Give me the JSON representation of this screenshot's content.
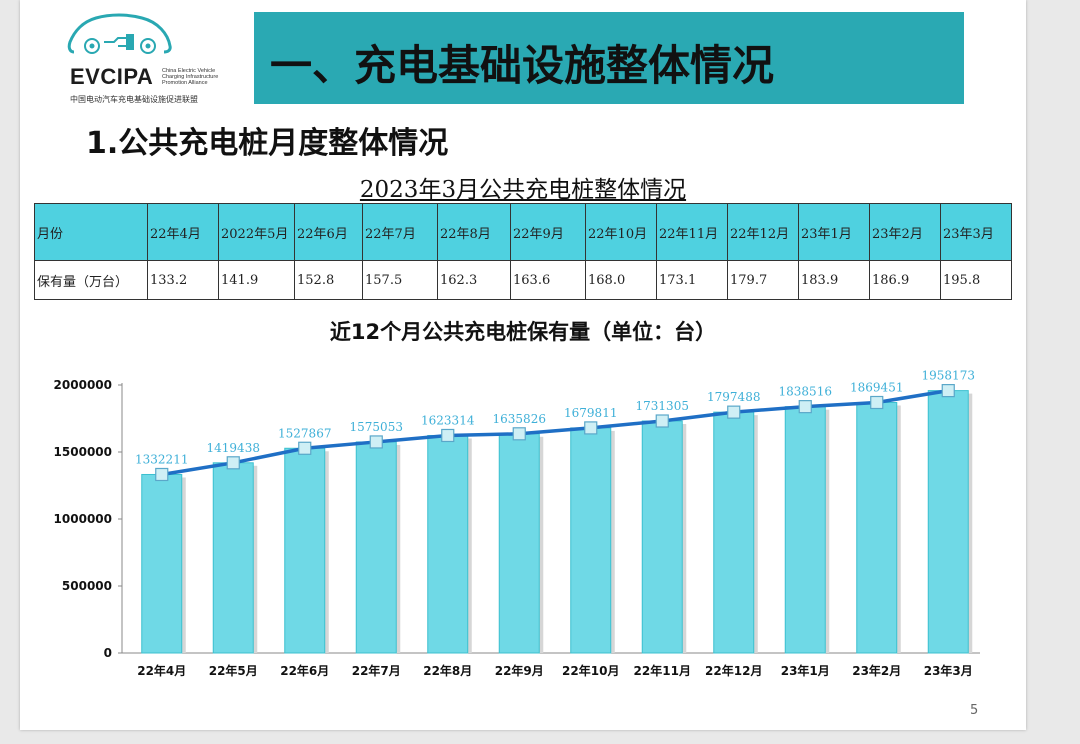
{
  "logo": {
    "name": "EVCIPA",
    "en_line1": "China Electric Vehicle",
    "en_line2": "Charging Infrastructure",
    "en_line3": "Promotion Alliance",
    "cn_name": "中国电动汽车充电基础设施促进联盟"
  },
  "header": {
    "title": "一、充电基础设施整体情况"
  },
  "section": {
    "subtitle": "1.公共充电桩月度整体情况"
  },
  "table": {
    "title": "2023年3月公共充电桩整体情况",
    "row_labels": [
      "月份",
      "保有量（万台）"
    ],
    "months": [
      "22年4月",
      "2022年5月",
      "22年6月",
      "22年7月",
      "22年8月",
      "22年9月",
      "22年10月",
      "22年11月",
      "22年12月",
      "23年1月",
      "23年2月",
      "23年3月"
    ],
    "values": [
      "133.2",
      "141.9",
      "152.8",
      "157.5",
      "162.3",
      "163.6",
      "168.0",
      "173.1",
      "179.7",
      "183.9",
      "186.9",
      "195.8"
    ]
  },
  "chart_data": {
    "type": "bar",
    "title": "近12个月公共充电桩保有量（单位：台）",
    "categories": [
      "22年4月",
      "22年5月",
      "22年6月",
      "22年7月",
      "22年8月",
      "22年9月",
      "22年10月",
      "22年11月",
      "22年12月",
      "23年1月",
      "23年2月",
      "23年3月"
    ],
    "values": [
      1332211,
      1419438,
      1527867,
      1575053,
      1623314,
      1635826,
      1679811,
      1731305,
      1797488,
      1838516,
      1869451,
      1958173
    ],
    "overlay_line": true,
    "ylim": [
      0,
      2000000
    ],
    "yticks": [
      "0",
      "500000",
      "1000000",
      "1500000",
      "2000000"
    ],
    "xlabel": "",
    "ylabel": "",
    "colors": {
      "bar": "#6fd9e6",
      "bar_edge": "#3cc0cf",
      "line": "#1f6fc5",
      "label": "#3fb0d8"
    }
  },
  "page": {
    "number": "5"
  }
}
